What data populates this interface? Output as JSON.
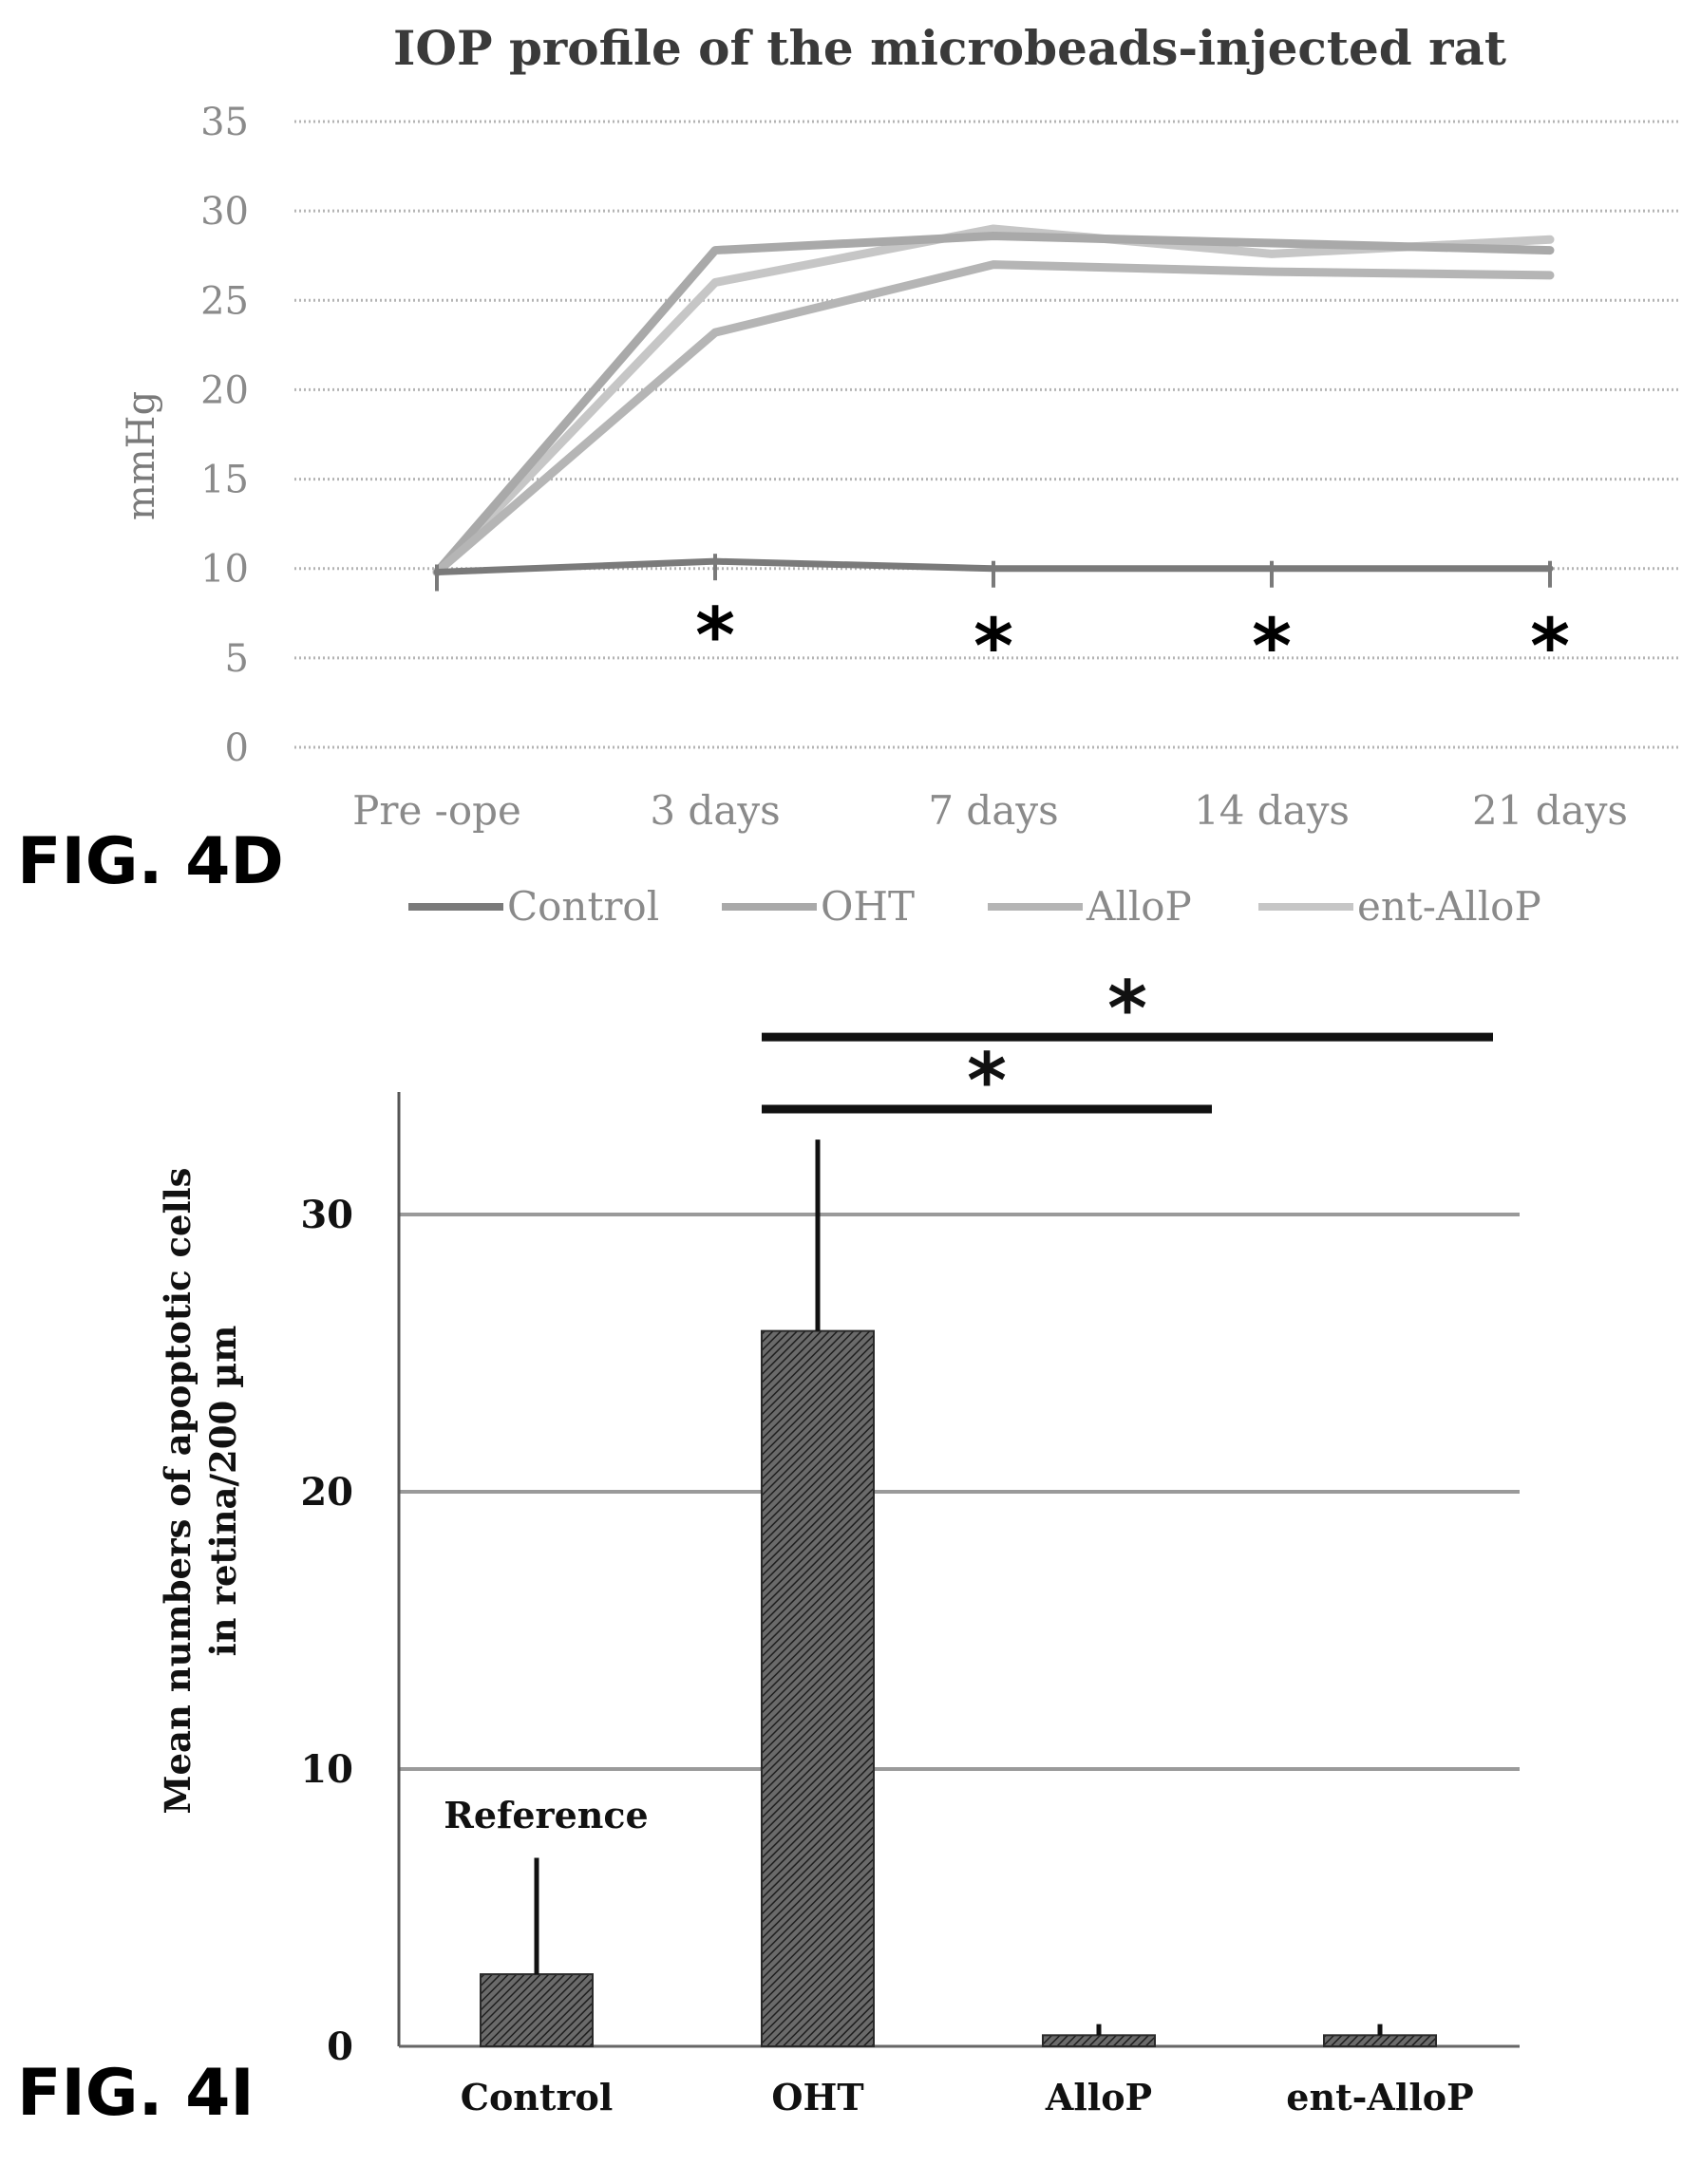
{
  "figures": {
    "top_label": "FIG. 4D",
    "bottom_label": "FIG. 4I"
  },
  "chart_data": [
    {
      "type": "line",
      "title": "IOP profile of the microbeads-injected rat",
      "ylabel": "mmHg",
      "xlabel": "",
      "categories": [
        "Pre -ope",
        "3 days",
        "7 days",
        "14 days",
        "21 days"
      ],
      "ylim": [
        0,
        35
      ],
      "yticks": [
        0,
        5,
        10,
        15,
        20,
        25,
        30,
        35
      ],
      "grid": true,
      "legend_position": "bottom",
      "series": [
        {
          "name": "Control",
          "values": [
            9.8,
            10.4,
            10.0,
            10.0,
            10.0
          ],
          "color": "#7a7a7a"
        },
        {
          "name": "OHT",
          "values": [
            9.8,
            27.8,
            28.6,
            28.2,
            27.8
          ],
          "color": "#a9a9a9"
        },
        {
          "name": "AlloP",
          "values": [
            9.8,
            23.2,
            27.0,
            26.6,
            26.4
          ],
          "color": "#b5b5b5"
        },
        {
          "name": "ent-AlloP",
          "values": [
            9.8,
            26.0,
            29.0,
            27.6,
            28.4
          ],
          "color": "#c6c6c6"
        }
      ],
      "annotations": [
        {
          "category": "3 days",
          "value": 6.8,
          "text": "*"
        },
        {
          "category": "7 days",
          "value": 6.2,
          "text": "*"
        },
        {
          "category": "14 days",
          "value": 6.2,
          "text": "*"
        },
        {
          "category": "21 days",
          "value": 6.2,
          "text": "*"
        }
      ]
    },
    {
      "type": "bar",
      "title": "",
      "xlabel": "",
      "ylabel_lines": [
        "Mean numbers of apoptotic cells",
        "in retina/200 µm"
      ],
      "categories": [
        "Control",
        "OHT",
        "AlloP",
        "ent-AlloP"
      ],
      "values": [
        2.6,
        25.8,
        0.4,
        0.4
      ],
      "error_bars": [
        4.2,
        6.9,
        0.4,
        0.4
      ],
      "ylim": [
        0,
        35
      ],
      "yticks": [
        0,
        10,
        20,
        30
      ],
      "grid": true,
      "bar_color": "#4a4a4a",
      "bar_annotations": [
        {
          "category": "Control",
          "text": "Reference"
        }
      ],
      "significance": [
        {
          "from": "OHT",
          "to": "AlloP",
          "value": 33.8,
          "text": "*"
        },
        {
          "from": "OHT",
          "to": "ent-AlloP",
          "value": 36.4,
          "text": "*"
        }
      ]
    }
  ]
}
